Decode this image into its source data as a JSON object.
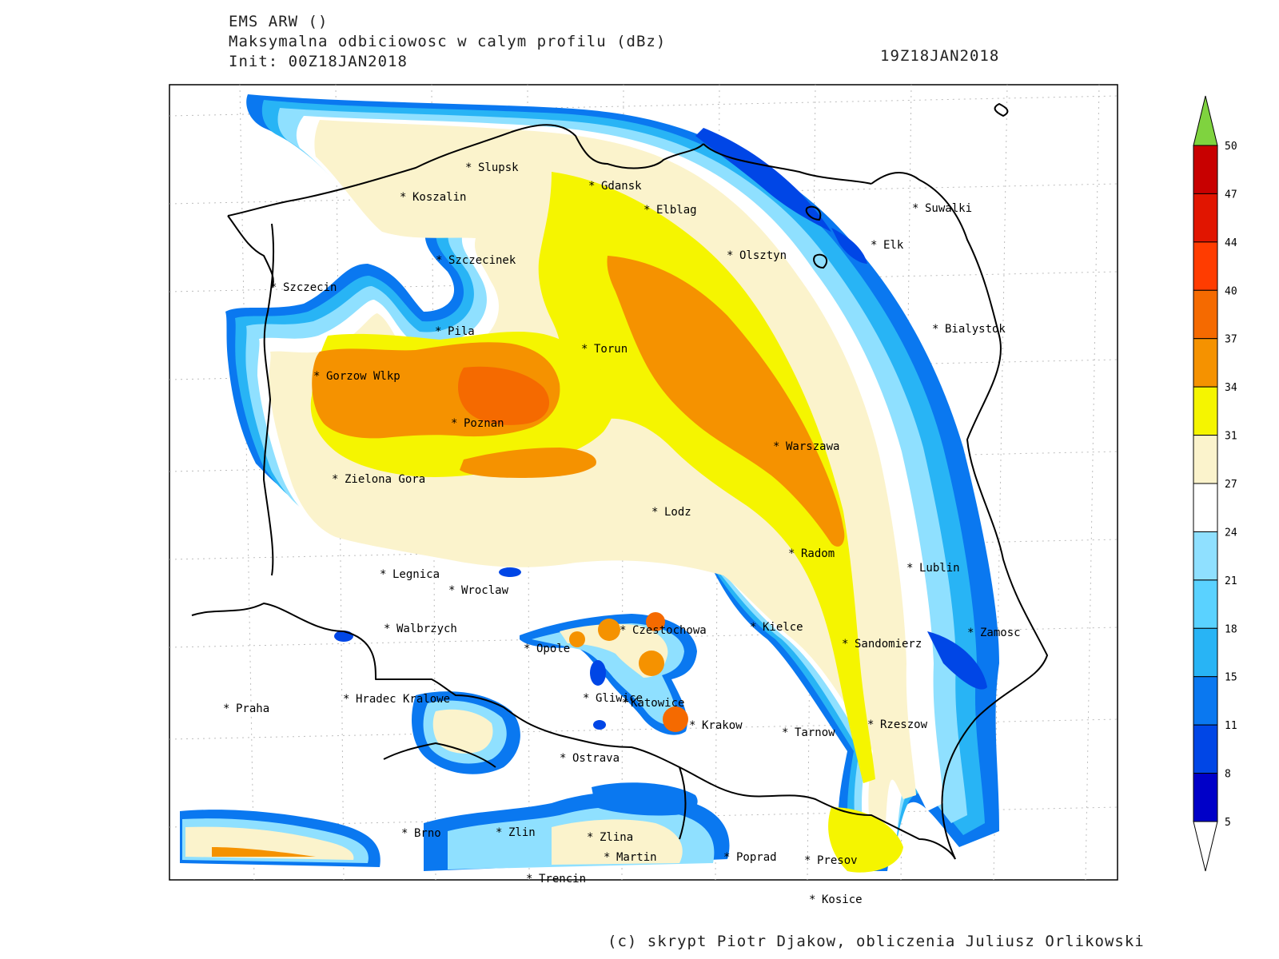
{
  "header": {
    "line1": "EMS ARW ()",
    "line2": "Maksymalna odbiciowosc w calym profilu (dBz)",
    "line3": "Init: 00Z18JAN2018",
    "valid_time": "19Z18JAN2018"
  },
  "credit": "(c) skrypt Piotr Djakow, obliczenia Juliusz Orlikowski",
  "colorbar": {
    "levels": [
      "50",
      "47",
      "44",
      "40",
      "37",
      "34",
      "31",
      "27",
      "24",
      "21",
      "18",
      "15",
      "11",
      "8",
      "5"
    ],
    "colors": [
      "#7fd33f",
      "#c80000",
      "#e11500",
      "#ff3c00",
      "#f56a00",
      "#f59200",
      "#f5f500",
      "#fbf3cc",
      "#ffffff",
      "#8fe0ff",
      "#5ad2ff",
      "#28b4f5",
      "#0a78f0",
      "#0046e6",
      "#0000c8"
    ]
  },
  "cities": [
    {
      "name": "Slupsk"
    },
    {
      "name": "Gdansk"
    },
    {
      "name": "Koszalin"
    },
    {
      "name": "Elblag"
    },
    {
      "name": "Suwalki"
    },
    {
      "name": "Elk"
    },
    {
      "name": "Olsztyn"
    },
    {
      "name": "Szczecinek"
    },
    {
      "name": "Szczecin"
    },
    {
      "name": "Pila"
    },
    {
      "name": "Bialystok"
    },
    {
      "name": "Torun"
    },
    {
      "name": "Gorzow Wlkp"
    },
    {
      "name": "Poznan"
    },
    {
      "name": "Warszawa"
    },
    {
      "name": "Zielona Gora"
    },
    {
      "name": "Lodz"
    },
    {
      "name": "Radom"
    },
    {
      "name": "Lublin"
    },
    {
      "name": "Legnica"
    },
    {
      "name": "Wroclaw"
    },
    {
      "name": "Walbrzych"
    },
    {
      "name": "Czestochowa"
    },
    {
      "name": "Kielce"
    },
    {
      "name": "Zamosc"
    },
    {
      "name": "Opole"
    },
    {
      "name": "Sandomierz"
    },
    {
      "name": "Gliwice"
    },
    {
      "name": "Katowice"
    },
    {
      "name": "Praha"
    },
    {
      "name": "Hradec Kralowe"
    },
    {
      "name": "Krakow"
    },
    {
      "name": "Tarnow"
    },
    {
      "name": "Rzeszow"
    },
    {
      "name": "Ostrava"
    },
    {
      "name": "Brno"
    },
    {
      "name": "Zlin"
    },
    {
      "name": "Zlina"
    },
    {
      "name": "Martin"
    },
    {
      "name": "Poprad"
    },
    {
      "name": "Presov"
    },
    {
      "name": "Trencin"
    },
    {
      "name": "Kosice"
    }
  ]
}
